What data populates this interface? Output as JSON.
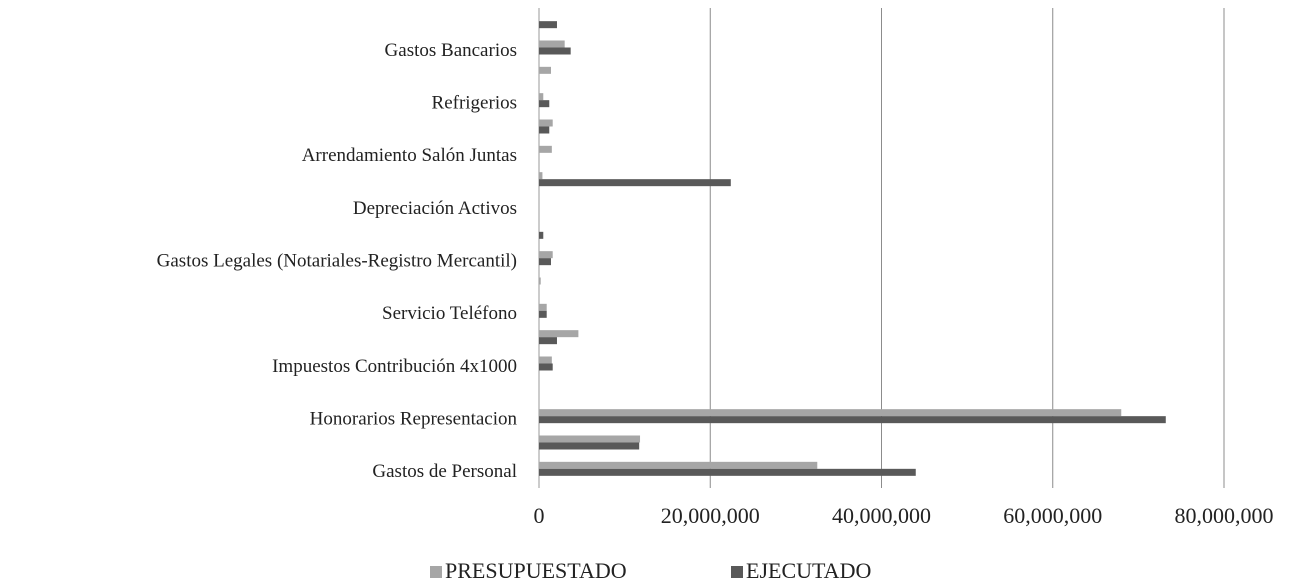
{
  "chart_data": {
    "type": "bar",
    "orientation": "horizontal",
    "categories": [
      null,
      "Gastos Bancarios",
      null,
      "Refrigerios",
      null,
      "Arrendamiento Salón Juntas",
      null,
      "Depreciación Activos",
      null,
      "Gastos Legales (Notariales-Registro Mercantil)",
      null,
      "Servicio Teléfono",
      null,
      "Impuestos Contribución  4x1000",
      null,
      "Honorarios Representacion",
      null,
      "Gastos de Personal"
    ],
    "series": [
      {
        "name": "PRESUPUESTADO",
        "color": "#a6a6a6",
        "values": [
          0,
          3000000,
          1400000,
          500000,
          1600000,
          1500000,
          400000,
          0,
          0,
          1600000,
          200000,
          900000,
          4600000,
          1500000,
          0,
          68000000,
          11800000,
          32500000
        ]
      },
      {
        "name": "EJECUTADO",
        "color": "#595959",
        "values": [
          2100000,
          3700000,
          0,
          1200000,
          1200000,
          0,
          22400000,
          0,
          500000,
          1400000,
          0,
          900000,
          2100000,
          1600000,
          0,
          73200000,
          11700000,
          44000000
        ]
      }
    ],
    "xlim": [
      0,
      80000000
    ],
    "xticks": [
      0,
      {
        "value": 20000000,
        "label": "20,000,000"
      },
      {
        "value": 40000000,
        "label": "40,000,000"
      },
      {
        "value": 60000000,
        "label": "60,000,000"
      },
      {
        "value": 80000000,
        "label": "80,000,000"
      }
    ],
    "grid": true,
    "legend": "bottom"
  }
}
